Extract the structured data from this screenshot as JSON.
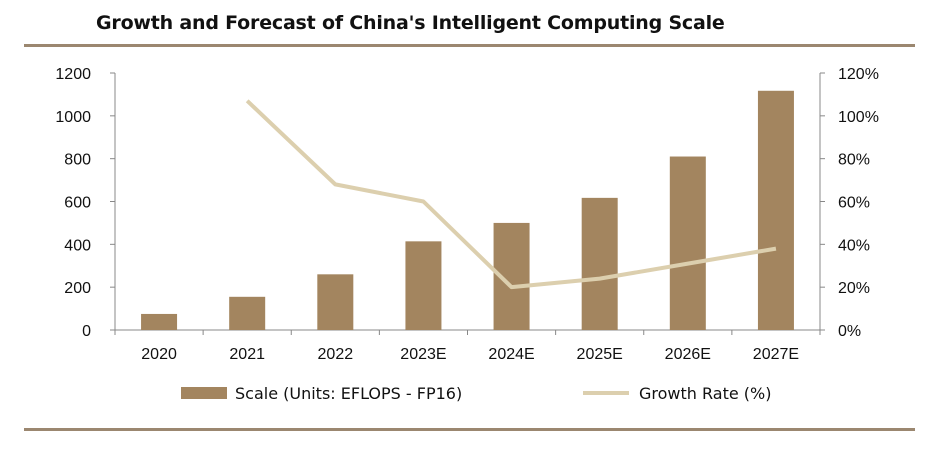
{
  "chart_data": {
    "type": "bar+line",
    "title": "Growth and Forecast of China's Intelligent Computing Scale",
    "categories": [
      "2020",
      "2021",
      "2022",
      "2023E",
      "2024E",
      "2025E",
      "2026E",
      "2027E"
    ],
    "series": [
      {
        "name": "Scale (Units: EFLOPS - FP16)",
        "type": "bar",
        "axis": "left",
        "values": [
          75,
          155,
          260,
          414,
          500,
          617,
          810,
          1117
        ]
      },
      {
        "name": "Growth Rate (%)",
        "type": "line",
        "axis": "right",
        "values": [
          null,
          107,
          68,
          60,
          20,
          24,
          31,
          38
        ]
      }
    ],
    "y_left": {
      "min": 0,
      "max": 1200,
      "ticks": [
        "0",
        "200",
        "400",
        "600",
        "800",
        "1000",
        "1200"
      ]
    },
    "y_right": {
      "min": 0,
      "max": 120,
      "ticks": [
        "0%",
        "20%",
        "40%",
        "60%",
        "80%",
        "100%",
        "120%"
      ]
    },
    "colors": {
      "bar": "#a3855f",
      "line": "#dccfae",
      "rule": "#9b8770",
      "axis": "#888888"
    }
  }
}
